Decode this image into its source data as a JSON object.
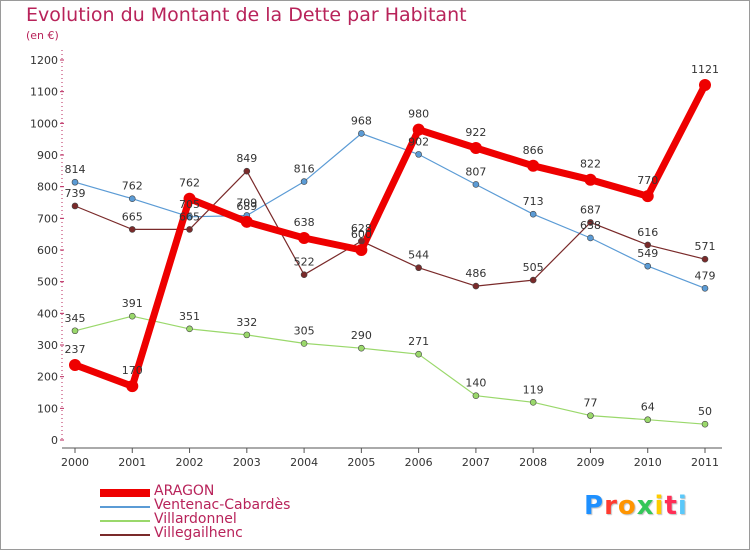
{
  "header": {
    "title": "Evolution du Montant de la Dette par Habitant",
    "subtitle": "(en €)"
  },
  "logo": {
    "letters": [
      "P",
      "r",
      "o",
      "x",
      "i",
      "t",
      "i"
    ],
    "colors": [
      "#1e90ff",
      "#ff3b30",
      "#ff9500",
      "#34c759",
      "#ffcc00",
      "#ff2d55",
      "#5ac8fa"
    ]
  },
  "chart_data": {
    "type": "line",
    "categories": [
      "2000",
      "2001",
      "2002",
      "2003",
      "2004",
      "2005",
      "2006",
      "2007",
      "2008",
      "2009",
      "2010",
      "2011"
    ],
    "ylim": [
      0,
      1200
    ],
    "yticks": [
      0,
      100,
      200,
      300,
      400,
      500,
      600,
      700,
      800,
      900,
      1000,
      1100,
      1200
    ],
    "grid": false,
    "legend_position": "bottom-left",
    "series": [
      {
        "name": "Ventenac-Cabardès",
        "color": "#5b9bd5",
        "values": [
          814,
          762,
          705,
          709,
          816,
          968,
          902,
          807,
          713,
          638,
          549,
          479
        ]
      },
      {
        "name": "Villardonnel",
        "color": "#9ad86b",
        "values": [
          345,
          391,
          351,
          332,
          305,
          290,
          271,
          140,
          119,
          77,
          64,
          50
        ]
      },
      {
        "name": "Villegailhenc",
        "color": "#7a2a2a",
        "values": [
          739,
          665,
          665,
          849,
          522,
          628,
          544,
          486,
          505,
          687,
          616,
          571
        ]
      },
      {
        "name": "ARAGON",
        "color": "#ee0000",
        "values": [
          237,
          170,
          762,
          689,
          638,
          600,
          980,
          922,
          866,
          822,
          770,
          1121
        ]
      }
    ],
    "legend_order": [
      "ARAGON",
      "Ventenac-Cabardès",
      "Villardonnel",
      "Villegailhenc"
    ]
  }
}
